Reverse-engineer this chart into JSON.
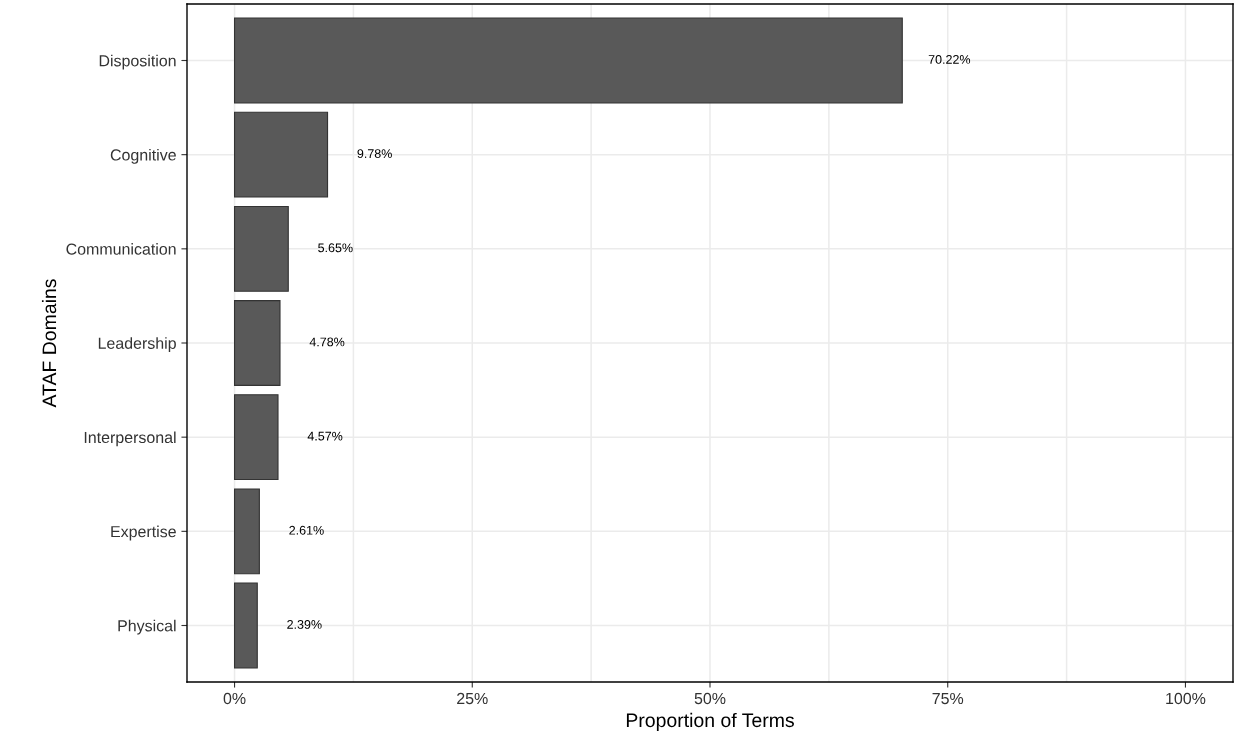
{
  "chart_data": {
    "type": "bar",
    "orientation": "horizontal",
    "xlabel": "Proportion of Terms",
    "ylabel": "ATAF Domains",
    "categories": [
      "Disposition",
      "Cognitive",
      "Communication",
      "Leadership",
      "Interpersonal",
      "Expertise",
      "Physical"
    ],
    "values": [
      70.22,
      9.78,
      5.65,
      4.78,
      4.57,
      2.61,
      2.39
    ],
    "value_labels": [
      "70.22%",
      "9.78%",
      "5.65%",
      "4.78%",
      "4.57%",
      "2.61%",
      "2.39%"
    ],
    "color": "#595959",
    "xlim": [
      -5,
      105
    ],
    "xticks": [
      {
        "value": 0,
        "label": "0%"
      },
      {
        "value": 12.5,
        "label": null
      },
      {
        "value": 25,
        "label": "25%"
      },
      {
        "value": 37.5,
        "label": null
      },
      {
        "value": 50,
        "label": "50%"
      },
      {
        "value": 62.5,
        "label": null
      },
      {
        "value": 75,
        "label": "75%"
      },
      {
        "value": 87.5,
        "label": null
      },
      {
        "value": 100,
        "label": "100%"
      }
    ],
    "grid": true
  }
}
